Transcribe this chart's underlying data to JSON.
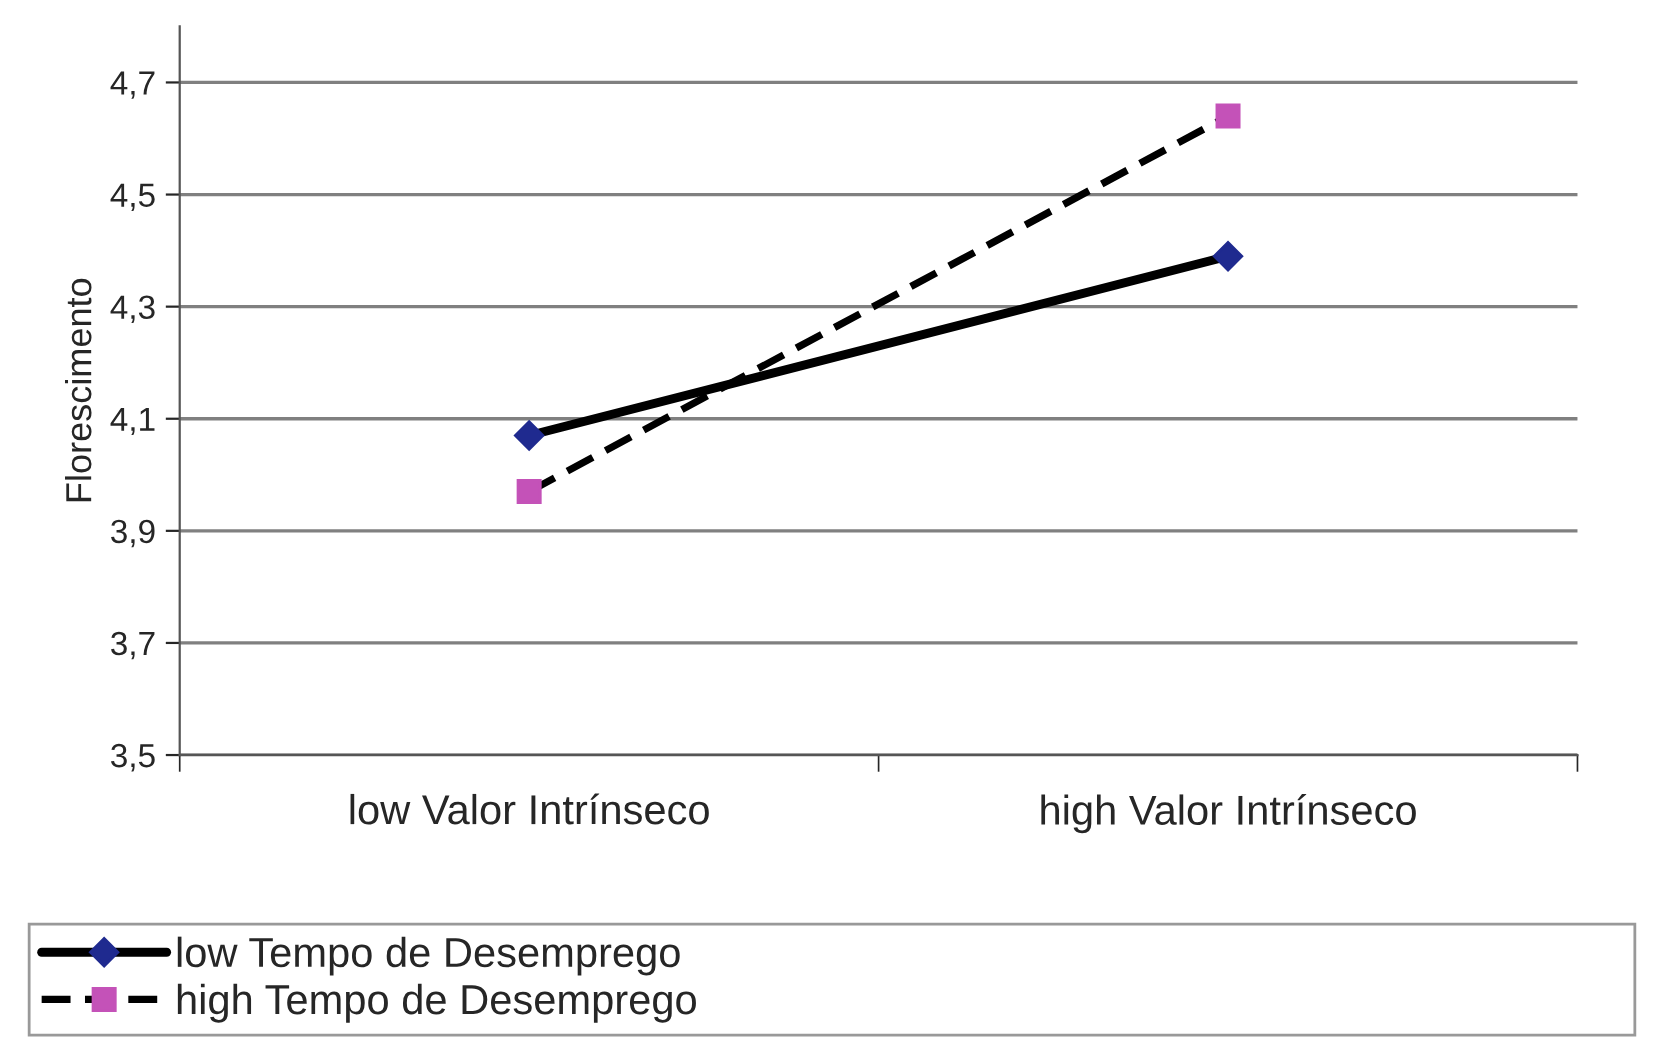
{
  "chart_data": {
    "type": "line",
    "ylabel": "Florescimento",
    "categories": [
      "low Valor Intrínseco",
      "high Valor Intrínseco"
    ],
    "series": [
      {
        "name": "low Tempo de Desemprego",
        "color": "#1f2a8f",
        "values": [
          4.07,
          4.39
        ],
        "marker": "diamond",
        "line_style": "solid"
      },
      {
        "name": "high Tempo de Desemprego",
        "color": "#c452b8",
        "values": [
          3.97,
          4.64
        ],
        "marker": "square",
        "line_style": "dashed"
      }
    ],
    "ylim": [
      3.5,
      4.8
    ],
    "yticks": [
      {
        "value": 3.5,
        "label": "3,5"
      },
      {
        "value": 3.7,
        "label": "3,7"
      },
      {
        "value": 3.9,
        "label": "3,9"
      },
      {
        "value": 4.1,
        "label": "4,1"
      },
      {
        "value": 4.3,
        "label": "4,3"
      },
      {
        "value": 4.5,
        "label": "4,5"
      },
      {
        "value": 4.7,
        "label": "4,7"
      }
    ],
    "grid": "y",
    "legend": "bottom"
  }
}
